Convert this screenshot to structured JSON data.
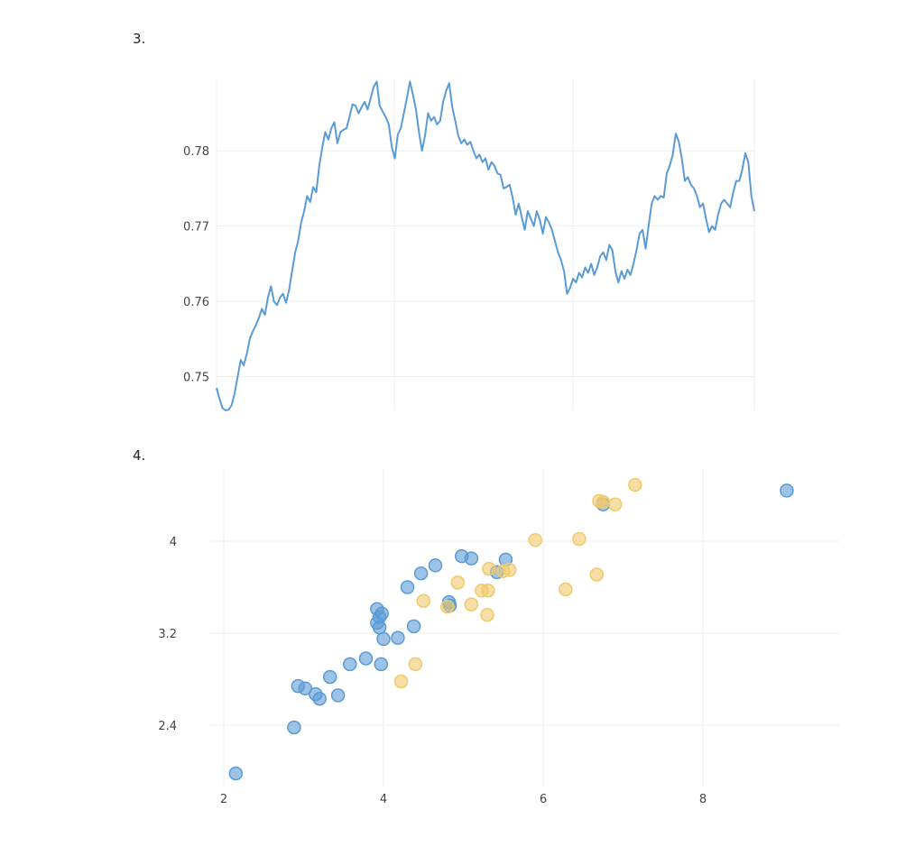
{
  "charts": [
    {
      "label": "3."
    },
    {
      "label": "4."
    }
  ],
  "chart_data": [
    {
      "type": "line",
      "ylim": [
        0.7455,
        0.7895
      ],
      "yticks": [
        0.75,
        0.76,
        0.77,
        0.78
      ],
      "ytick_labels": [
        "0.75",
        "0.76",
        "0.77",
        "0.78"
      ],
      "grid": true,
      "series": [
        {
          "color": "#5b9bd5",
          "values": [
            0.7485,
            0.747,
            0.7458,
            0.7455,
            0.7456,
            0.7462,
            0.7478,
            0.75,
            0.7522,
            0.7515,
            0.753,
            0.755,
            0.756,
            0.7568,
            0.7578,
            0.759,
            0.7582,
            0.7605,
            0.762,
            0.76,
            0.7595,
            0.7605,
            0.761,
            0.7598,
            0.7615,
            0.764,
            0.7665,
            0.768,
            0.7705,
            0.772,
            0.774,
            0.7732,
            0.7752,
            0.7745,
            0.778,
            0.7805,
            0.7825,
            0.7815,
            0.783,
            0.7838,
            0.781,
            0.7825,
            0.7828,
            0.783,
            0.7845,
            0.7862,
            0.786,
            0.785,
            0.7858,
            0.7865,
            0.7855,
            0.787,
            0.7885,
            0.7892,
            0.786,
            0.7852,
            0.7845,
            0.7835,
            0.7805,
            0.779,
            0.7822,
            0.783,
            0.785,
            0.787,
            0.7892,
            0.7875,
            0.7855,
            0.7825,
            0.78,
            0.782,
            0.785,
            0.784,
            0.7845,
            0.7835,
            0.784,
            0.7865,
            0.788,
            0.789,
            0.7858,
            0.784,
            0.782,
            0.781,
            0.7815,
            0.7808,
            0.7812,
            0.78,
            0.779,
            0.7795,
            0.7785,
            0.779,
            0.7775,
            0.7785,
            0.778,
            0.777,
            0.7768,
            0.775,
            0.7752,
            0.7755,
            0.7738,
            0.7715,
            0.773,
            0.7712,
            0.7695,
            0.772,
            0.771,
            0.77,
            0.772,
            0.7708,
            0.769,
            0.7712,
            0.7705,
            0.7695,
            0.768,
            0.7665,
            0.7655,
            0.764,
            0.761,
            0.7618,
            0.763,
            0.7625,
            0.7638,
            0.7632,
            0.7645,
            0.7638,
            0.765,
            0.7635,
            0.7645,
            0.766,
            0.7665,
            0.7655,
            0.7675,
            0.7668,
            0.764,
            0.7625,
            0.764,
            0.763,
            0.7642,
            0.7635,
            0.765,
            0.7668,
            0.769,
            0.7695,
            0.767,
            0.77,
            0.773,
            0.774,
            0.7735,
            0.774,
            0.7738,
            0.777,
            0.778,
            0.7795,
            0.7823,
            0.7812,
            0.779,
            0.776,
            0.7765,
            0.7755,
            0.775,
            0.774,
            0.7725,
            0.773,
            0.771,
            0.7692,
            0.77,
            0.7695,
            0.7715,
            0.773,
            0.7735,
            0.773,
            0.7725,
            0.7745,
            0.776,
            0.776,
            0.7775,
            0.7797,
            0.7785,
            0.774,
            0.772
          ]
        }
      ]
    },
    {
      "type": "scatter",
      "xlim": [
        1.8,
        9.6
      ],
      "ylim": [
        1.7,
        4.5
      ],
      "xticks": [
        2,
        4,
        6,
        8
      ],
      "xtick_labels": [
        "2",
        "4",
        "6",
        "8"
      ],
      "yticks": [
        2.4,
        3.2,
        4
      ],
      "ytick_labels": [
        "2.4",
        "3.2",
        "4"
      ],
      "grid": true,
      "series": [
        {
          "color": "#5b9bd5",
          "points": [
            [
              2.15,
              1.98
            ],
            [
              2.88,
              2.38
            ],
            [
              2.93,
              2.74
            ],
            [
              3.02,
              2.72
            ],
            [
              3.15,
              2.67
            ],
            [
              3.2,
              2.63
            ],
            [
              3.33,
              2.82
            ],
            [
              3.43,
              2.66
            ],
            [
              3.58,
              2.93
            ],
            [
              3.78,
              2.98
            ],
            [
              3.97,
              2.93
            ],
            [
              4.0,
              3.15
            ],
            [
              4.18,
              3.16
            ],
            [
              3.92,
              3.41
            ],
            [
              3.95,
              3.34
            ],
            [
              3.98,
              3.37
            ],
            [
              3.92,
              3.29
            ],
            [
              3.95,
              3.25
            ],
            [
              4.38,
              3.26
            ],
            [
              4.3,
              3.6
            ],
            [
              4.47,
              3.72
            ],
            [
              4.65,
              3.79
            ],
            [
              4.98,
              3.87
            ],
            [
              5.1,
              3.85
            ],
            [
              5.53,
              3.84
            ],
            [
              5.42,
              3.73
            ],
            [
              4.82,
              3.47
            ],
            [
              4.83,
              3.44
            ],
            [
              6.75,
              4.32
            ],
            [
              9.05,
              4.44
            ]
          ]
        },
        {
          "color": "#f0c96a",
          "points": [
            [
              4.22,
              2.78
            ],
            [
              4.4,
              2.93
            ],
            [
              4.5,
              3.48
            ],
            [
              4.8,
              3.43
            ],
            [
              4.93,
              3.64
            ],
            [
              5.1,
              3.45
            ],
            [
              5.23,
              3.57
            ],
            [
              5.31,
              3.57
            ],
            [
              5.3,
              3.36
            ],
            [
              5.32,
              3.76
            ],
            [
              5.5,
              3.74
            ],
            [
              5.58,
              3.75
            ],
            [
              5.9,
              4.01
            ],
            [
              6.28,
              3.58
            ],
            [
              6.45,
              4.02
            ],
            [
              6.67,
              3.71
            ],
            [
              6.7,
              4.35
            ],
            [
              6.75,
              4.34
            ],
            [
              6.9,
              4.32
            ],
            [
              7.15,
              4.49
            ]
          ]
        }
      ]
    }
  ]
}
